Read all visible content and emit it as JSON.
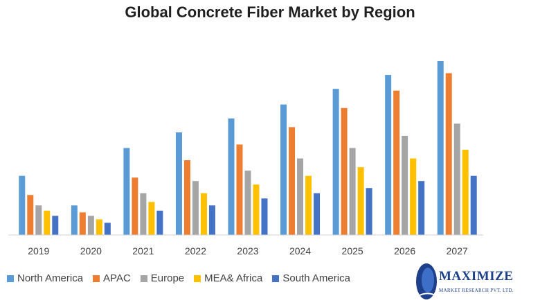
{
  "chart_data": {
    "type": "bar",
    "title": "Global Concrete Fiber Market by Region",
    "xlabel": "",
    "ylabel": "",
    "ylim": [
      0,
      100
    ],
    "grid": false,
    "legend_position": "bottom",
    "categories": [
      "2019",
      "2020",
      "2021",
      "2022",
      "2023",
      "2024",
      "2025",
      "2026",
      "2027"
    ],
    "series": [
      {
        "name": "North America",
        "color": "#5B9BD5",
        "values": [
          34,
          17,
          50,
          59,
          67,
          75,
          84,
          92,
          100
        ]
      },
      {
        "name": "APAC",
        "color": "#ED7D31",
        "values": [
          23,
          13,
          33,
          43,
          52,
          62,
          73,
          83,
          93
        ]
      },
      {
        "name": "Europe",
        "color": "#A5A5A5",
        "values": [
          17,
          11,
          24,
          31,
          37,
          44,
          50,
          57,
          64
        ]
      },
      {
        "name": "MEA& Africa",
        "color": "#FFC000",
        "values": [
          14,
          9,
          19,
          24,
          29,
          34,
          39,
          44,
          49
        ]
      },
      {
        "name": "South America",
        "color": "#4472C4",
        "values": [
          11,
          7,
          14,
          17,
          21,
          24,
          27,
          31,
          34
        ]
      }
    ]
  },
  "logo": {
    "name": "MAXIMIZE",
    "subtitle": "MARKET RESEARCH PVT. LTD."
  }
}
